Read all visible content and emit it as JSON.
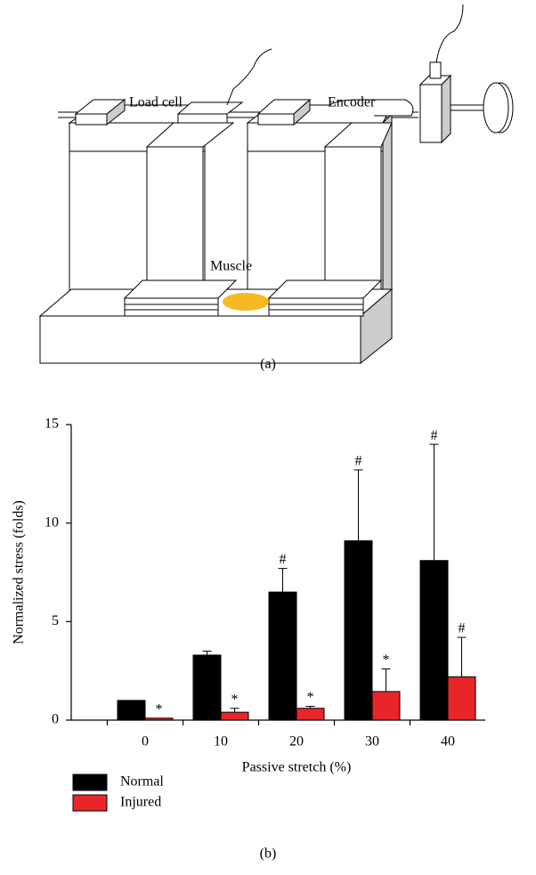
{
  "diagram": {
    "labels": [
      "Load cell",
      "Encoder",
      "Muscle"
    ],
    "caption": "(a)"
  },
  "chart_data": {
    "type": "bar",
    "caption": "(b)",
    "x_label": "Passive stretch (%)",
    "y_label": "Normalized stress (folds)",
    "categories": [
      "0",
      "10",
      "20",
      "30",
      "40"
    ],
    "series": [
      {
        "name": "Normal",
        "color": "#000000",
        "values": [
          1.0,
          3.3,
          6.5,
          9.1,
          8.1
        ],
        "errors": [
          null,
          0.2,
          1.2,
          3.6,
          5.9
        ],
        "markers": [
          null,
          null,
          "#",
          "#",
          "#"
        ]
      },
      {
        "name": "Injured",
        "color": "#e8262a",
        "values": [
          0.1,
          0.4,
          0.6,
          1.45,
          2.2
        ],
        "errors": [
          null,
          0.2,
          0.1,
          1.15,
          2.0
        ],
        "markers": [
          "*",
          "*",
          "*",
          "*",
          "#"
        ]
      }
    ],
    "ylim": [
      0,
      15
    ],
    "yticks": [
      0,
      5,
      10,
      15
    ],
    "legend": "bottom-left"
  }
}
